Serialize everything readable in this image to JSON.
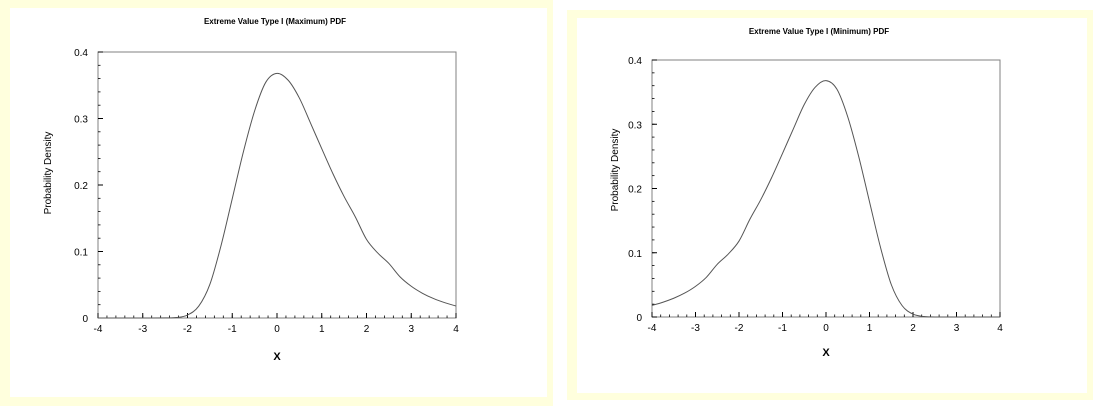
{
  "chart_data": [
    {
      "type": "line",
      "title": "Extreme Value Type I (Maximum) PDF",
      "xlabel": "X",
      "ylabel": "Probability Density",
      "xlim": [
        -4,
        4
      ],
      "ylim": [
        0,
        0.4
      ],
      "xticks": [
        "-4",
        "-3",
        "-2",
        "-1",
        "0",
        "1",
        "2",
        "3",
        "4"
      ],
      "yticks": [
        "0",
        "0.1",
        "0.2",
        "0.3",
        "0.4"
      ],
      "grid": false,
      "series": [
        {
          "x": [
            -4,
            -3.5,
            -3,
            -2.5,
            -2.25,
            -2,
            -1.75,
            -1.5,
            -1.25,
            -1,
            -0.75,
            -0.5,
            -0.25,
            0,
            0.25,
            0.5,
            0.75,
            1,
            1.25,
            1.5,
            1.75,
            2,
            2.25,
            2.5,
            2.75,
            3,
            3.25,
            3.5,
            3.75,
            4
          ],
          "y": [
            0,
            0,
            0,
            0.0001,
            0.0007,
            0.0045,
            0.0177,
            0.0506,
            0.1091,
            0.1794,
            0.2502,
            0.3115,
            0.3546,
            0.3679,
            0.3575,
            0.3307,
            0.2929,
            0.2546,
            0.2169,
            0.1826,
            0.1521,
            0.1182,
            0.0978,
            0.082,
            0.0618,
            0.0477,
            0.0372,
            0.0292,
            0.023,
            0.018
          ]
        }
      ]
    },
    {
      "type": "line",
      "title": "Extreme Value Type I (Minimum) PDF",
      "xlabel": "X",
      "ylabel": "Probability Density",
      "xlim": [
        -4,
        4
      ],
      "ylim": [
        0,
        0.4
      ],
      "xticks": [
        "-4",
        "-3",
        "-2",
        "-1",
        "0",
        "1",
        "2",
        "3",
        "4"
      ],
      "yticks": [
        "0",
        "0.1",
        "0.2",
        "0.3",
        "0.4"
      ],
      "grid": false,
      "series": [
        {
          "x": [
            -4,
            -3.75,
            -3.5,
            -3.25,
            -3,
            -2.75,
            -2.5,
            -2.25,
            -2,
            -1.75,
            -1.5,
            -1.25,
            -1,
            -0.75,
            -0.5,
            -0.25,
            0,
            0.25,
            0.5,
            0.75,
            1,
            1.25,
            1.5,
            1.75,
            2,
            2.25,
            2.5,
            3,
            3.5,
            4
          ],
          "y": [
            0.018,
            0.023,
            0.0292,
            0.0372,
            0.0477,
            0.0618,
            0.082,
            0.0978,
            0.1182,
            0.1521,
            0.1826,
            0.2169,
            0.2546,
            0.2929,
            0.3307,
            0.3575,
            0.3679,
            0.3546,
            0.3115,
            0.2502,
            0.1794,
            0.1091,
            0.0506,
            0.0177,
            0.0045,
            0.0007,
            0.0001,
            0,
            0,
            0
          ]
        }
      ]
    }
  ]
}
